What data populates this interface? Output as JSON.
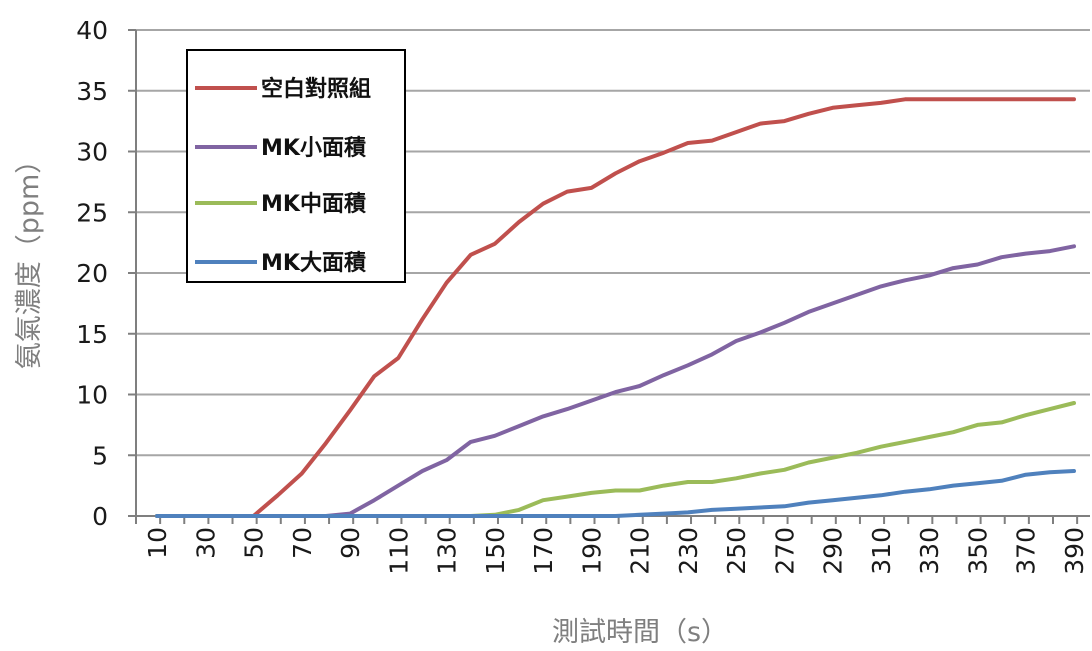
{
  "chart_data": {
    "type": "line",
    "xlabel": "測試時間（s）",
    "ylabel": "氨氣濃度（ppm）",
    "xlim": [
      10,
      390
    ],
    "ylim": [
      0,
      40
    ],
    "yticks": [
      0,
      5,
      10,
      15,
      20,
      25,
      30,
      35,
      40
    ],
    "xticks": [
      10,
      30,
      50,
      70,
      90,
      110,
      130,
      150,
      170,
      190,
      210,
      230,
      250,
      270,
      290,
      310,
      330,
      350,
      370,
      390
    ],
    "grid": "horizontal",
    "legend_position": "top-left",
    "x": [
      10,
      20,
      30,
      40,
      50,
      60,
      70,
      80,
      90,
      100,
      110,
      120,
      130,
      140,
      150,
      160,
      170,
      180,
      190,
      200,
      210,
      220,
      230,
      240,
      250,
      260,
      270,
      280,
      290,
      300,
      310,
      320,
      330,
      340,
      350,
      360,
      370,
      380,
      390
    ],
    "series": [
      {
        "name": "空白對照組",
        "color": "#c0504d",
        "values": [
          0,
          0,
          0,
          0,
          0,
          1.7,
          3.5,
          6.0,
          8.7,
          11.5,
          13.0,
          16.2,
          19.2,
          21.5,
          22.4,
          24.2,
          25.7,
          26.7,
          27.0,
          28.2,
          29.2,
          29.9,
          30.7,
          30.9,
          31.6,
          32.3,
          32.5,
          33.1,
          33.6,
          33.8,
          34.0,
          34.3,
          34.3,
          34.3,
          34.3,
          34.3,
          34.3,
          34.3,
          34.3
        ]
      },
      {
        "name": "MK小面積",
        "color": "#8064a2",
        "values": [
          0,
          0,
          0,
          0,
          0,
          0,
          0,
          0,
          0.2,
          1.3,
          2.5,
          3.7,
          4.6,
          6.1,
          6.6,
          7.4,
          8.2,
          8.8,
          9.5,
          10.2,
          10.7,
          11.6,
          12.4,
          13.3,
          14.4,
          15.1,
          15.9,
          16.8,
          17.5,
          18.2,
          18.9,
          19.4,
          19.8,
          20.4,
          20.7,
          21.3,
          21.6,
          21.8,
          22.2
        ]
      },
      {
        "name": "MK中面積",
        "color": "#9bbb59",
        "values": [
          0,
          0,
          0,
          0,
          0,
          0,
          0,
          0,
          0,
          0,
          0,
          0,
          0,
          0,
          0.1,
          0.5,
          1.3,
          1.6,
          1.9,
          2.1,
          2.1,
          2.5,
          2.8,
          2.8,
          3.1,
          3.5,
          3.8,
          4.4,
          4.8,
          5.2,
          5.7,
          6.1,
          6.5,
          6.9,
          7.5,
          7.7,
          8.3,
          8.8,
          9.3
        ]
      },
      {
        "name": "MK大面積",
        "color": "#4f81bd",
        "values": [
          0,
          0,
          0,
          0,
          0,
          0,
          0,
          0,
          0,
          0,
          0,
          0,
          0,
          0,
          0,
          0,
          0,
          0,
          0,
          0,
          0.1,
          0.2,
          0.3,
          0.5,
          0.6,
          0.7,
          0.8,
          1.1,
          1.3,
          1.5,
          1.7,
          2.0,
          2.2,
          2.5,
          2.7,
          2.9,
          3.4,
          3.6,
          3.7
        ]
      }
    ]
  }
}
